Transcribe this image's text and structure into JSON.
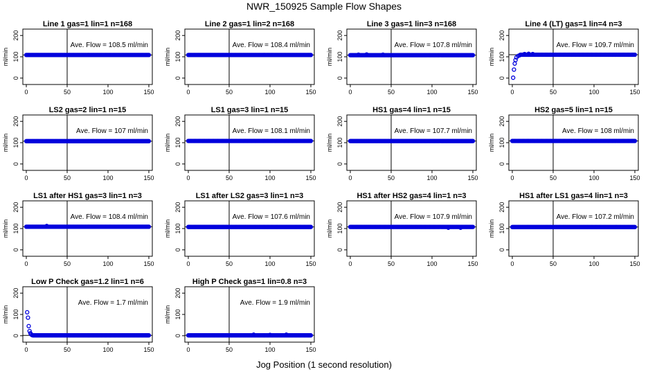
{
  "figure": {
    "title": "NWR_150925  Sample Flow Shapes",
    "xlabel": "Jog Position (1 second resolution)"
  },
  "colors": {
    "points": "#0000dd",
    "axes": "#000000",
    "background": "#ffffff"
  },
  "chart_data": [
    {
      "type": "scatter",
      "title": "Line 1 gas=1 lin=1 n=168",
      "ylabel": "ml/min",
      "annotation": "Ave. Flow = 108.5  ml/min",
      "avg_flow": 108.5,
      "xlim": [
        0,
        150
      ],
      "ylim": [
        -30,
        230
      ],
      "x_ticks": [
        "0",
        "50",
        "100",
        "150"
      ],
      "y_ticks": [
        "0",
        "100",
        "200"
      ],
      "ref_lines": {
        "h": 108.5,
        "v": 50
      },
      "shape": "flat",
      "steady": 108.5,
      "noise": []
    },
    {
      "type": "scatter",
      "title": "Line 2 gas=1 lin=2 n=168",
      "ylabel": "ml/min",
      "annotation": "Ave. Flow = 108.4  ml/min",
      "avg_flow": 108.4,
      "xlim": [
        0,
        150
      ],
      "ylim": [
        -30,
        230
      ],
      "x_ticks": [
        "0",
        "50",
        "100",
        "150"
      ],
      "y_ticks": [
        "0",
        "100",
        "200"
      ],
      "ref_lines": {
        "h": 108.4,
        "v": 50
      },
      "shape": "flat",
      "steady": 108.4,
      "noise": []
    },
    {
      "type": "scatter",
      "title": "Line 3 gas=1 lin=3 n=168",
      "ylabel": "ml/min",
      "annotation": "Ave. Flow = 107.8  ml/min",
      "avg_flow": 107.8,
      "xlim": [
        0,
        150
      ],
      "ylim": [
        -30,
        230
      ],
      "x_ticks": [
        "0",
        "50",
        "100",
        "150"
      ],
      "y_ticks": [
        "0",
        "100",
        "200"
      ],
      "ref_lines": {
        "h": 107.8,
        "v": 50
      },
      "shape": "flat",
      "steady": 107.8,
      "noise": [
        [
          10,
          110
        ],
        [
          20,
          111
        ],
        [
          40,
          110
        ]
      ]
    },
    {
      "type": "scatter",
      "title": "Line 4 (LT) gas=1 lin=4 n=3",
      "ylabel": "ml/min",
      "annotation": "Ave. Flow = 109.7  ml/min",
      "avg_flow": 109.7,
      "xlim": [
        0,
        150
      ],
      "ylim": [
        -30,
        230
      ],
      "x_ticks": [
        "0",
        "50",
        "100",
        "150"
      ],
      "y_ticks": [
        "0",
        "100",
        "200"
      ],
      "ref_lines": {
        "h": 109.7,
        "v": 50
      },
      "shape": "rise",
      "ramp": [
        [
          1,
          2
        ],
        [
          2,
          40
        ],
        [
          3,
          68
        ],
        [
          4,
          85
        ],
        [
          5,
          97
        ],
        [
          7,
          104
        ],
        [
          9,
          107
        ]
      ],
      "steady": 109.7,
      "noise": [
        [
          15,
          113
        ],
        [
          20,
          114
        ],
        [
          25,
          113
        ]
      ]
    },
    {
      "type": "scatter",
      "title": "LS2 gas=2 lin=1 n=15",
      "ylabel": "ml/min",
      "annotation": "Ave. Flow = 107  ml/min",
      "avg_flow": 107.0,
      "xlim": [
        0,
        150
      ],
      "ylim": [
        -30,
        230
      ],
      "x_ticks": [
        "0",
        "50",
        "100",
        "150"
      ],
      "y_ticks": [
        "0",
        "100",
        "200"
      ],
      "ref_lines": {
        "h": 107.0,
        "v": 50
      },
      "shape": "flat",
      "steady": 107.0,
      "noise": []
    },
    {
      "type": "scatter",
      "title": "LS1 gas=3 lin=1 n=15",
      "ylabel": "ml/min",
      "annotation": "Ave. Flow = 108.1  ml/min",
      "avg_flow": 108.1,
      "xlim": [
        0,
        150
      ],
      "ylim": [
        -30,
        230
      ],
      "x_ticks": [
        "0",
        "50",
        "100",
        "150"
      ],
      "y_ticks": [
        "0",
        "100",
        "200"
      ],
      "ref_lines": {
        "h": 108.1,
        "v": 50
      },
      "shape": "flat",
      "steady": 108.1,
      "noise": []
    },
    {
      "type": "scatter",
      "title": "HS1 gas=4 lin=1 n=15",
      "ylabel": "ml/min",
      "annotation": "Ave. Flow = 107.7  ml/min",
      "avg_flow": 107.7,
      "xlim": [
        0,
        150
      ],
      "ylim": [
        -30,
        230
      ],
      "x_ticks": [
        "0",
        "50",
        "100",
        "150"
      ],
      "y_ticks": [
        "0",
        "100",
        "200"
      ],
      "ref_lines": {
        "h": 107.7,
        "v": 50
      },
      "shape": "flat",
      "steady": 107.7,
      "noise": []
    },
    {
      "type": "scatter",
      "title": "HS2 gas=5 lin=1 n=15",
      "ylabel": "ml/min",
      "annotation": "Ave. Flow = 108  ml/min",
      "avg_flow": 108.0,
      "xlim": [
        0,
        150
      ],
      "ylim": [
        -30,
        230
      ],
      "x_ticks": [
        "0",
        "50",
        "100",
        "150"
      ],
      "y_ticks": [
        "0",
        "100",
        "200"
      ],
      "ref_lines": {
        "h": 108.0,
        "v": 50
      },
      "shape": "flat",
      "steady": 108.0,
      "noise": []
    },
    {
      "type": "scatter",
      "title": "LS1 after HS1 gas=3 lin=1 n=3",
      "ylabel": "ml/min",
      "annotation": "Ave. Flow = 108.4  ml/min",
      "avg_flow": 108.4,
      "xlim": [
        0,
        150
      ],
      "ylim": [
        -30,
        230
      ],
      "x_ticks": [
        "0",
        "50",
        "100",
        "150"
      ],
      "y_ticks": [
        "0",
        "100",
        "200"
      ],
      "ref_lines": {
        "h": 108.4,
        "v": 50
      },
      "shape": "flat",
      "steady": 108.4,
      "noise": [
        [
          25,
          112
        ]
      ]
    },
    {
      "type": "scatter",
      "title": "LS1 after LS2 gas=3 lin=1 n=3",
      "ylabel": "ml/min",
      "annotation": "Ave. Flow = 107.6  ml/min",
      "avg_flow": 107.6,
      "xlim": [
        0,
        150
      ],
      "ylim": [
        -30,
        230
      ],
      "x_ticks": [
        "0",
        "50",
        "100",
        "150"
      ],
      "y_ticks": [
        "0",
        "100",
        "200"
      ],
      "ref_lines": {
        "h": 107.6,
        "v": 50
      },
      "shape": "flat",
      "steady": 107.6,
      "noise": []
    },
    {
      "type": "scatter",
      "title": "HS1 after HS2 gas=4 lin=1 n=3",
      "ylabel": "ml/min",
      "annotation": "Ave. Flow = 107.9  ml/min",
      "avg_flow": 107.9,
      "xlim": [
        0,
        150
      ],
      "ylim": [
        -30,
        230
      ],
      "x_ticks": [
        "0",
        "50",
        "100",
        "150"
      ],
      "y_ticks": [
        "0",
        "100",
        "200"
      ],
      "ref_lines": {
        "h": 107.9,
        "v": 50
      },
      "shape": "flat",
      "steady": 107.9,
      "noise": [
        [
          120,
          104
        ],
        [
          135,
          104
        ]
      ]
    },
    {
      "type": "scatter",
      "title": "HS1 after LS1 gas=4 lin=1 n=3",
      "ylabel": "ml/min",
      "annotation": "Ave. Flow = 107.2  ml/min",
      "avg_flow": 107.2,
      "xlim": [
        0,
        150
      ],
      "ylim": [
        -30,
        230
      ],
      "x_ticks": [
        "0",
        "50",
        "100",
        "150"
      ],
      "y_ticks": [
        "0",
        "100",
        "200"
      ],
      "ref_lines": {
        "h": 107.2,
        "v": 50
      },
      "shape": "flat",
      "steady": 107.2,
      "noise": []
    },
    {
      "type": "scatter",
      "title": "Low P Check gas=1.2 lin=1 n=6",
      "ylabel": "ml/min",
      "annotation": "Ave. Flow = 1.7  ml/min",
      "avg_flow": 1.7,
      "xlim": [
        0,
        150
      ],
      "ylim": [
        -30,
        230
      ],
      "x_ticks": [
        "0",
        "50",
        "100",
        "150"
      ],
      "y_ticks": [
        "0",
        "100",
        "200"
      ],
      "ref_lines": {
        "h": 1.7,
        "v": 50
      },
      "shape": "decay",
      "ramp": [
        [
          1,
          110
        ],
        [
          2,
          85
        ],
        [
          3,
          45
        ],
        [
          4,
          22
        ],
        [
          5,
          12
        ],
        [
          6,
          6
        ],
        [
          7,
          3
        ]
      ],
      "steady": 1.7,
      "noise": []
    },
    {
      "type": "scatter",
      "title": "High P Check gas=1 lin=0.8 n=3",
      "ylabel": "ml/min",
      "annotation": "Ave. Flow = 1.9  ml/min",
      "avg_flow": 1.9,
      "xlim": [
        0,
        150
      ],
      "ylim": [
        -30,
        230
      ],
      "x_ticks": [
        "0",
        "50",
        "100",
        "150"
      ],
      "y_ticks": [
        "0",
        "100",
        "200"
      ],
      "ref_lines": {
        "h": 1.9,
        "v": 50
      },
      "shape": "flat",
      "steady": 1.9,
      "noise": [
        [
          80,
          5
        ],
        [
          100,
          4
        ],
        [
          120,
          5
        ]
      ]
    }
  ]
}
